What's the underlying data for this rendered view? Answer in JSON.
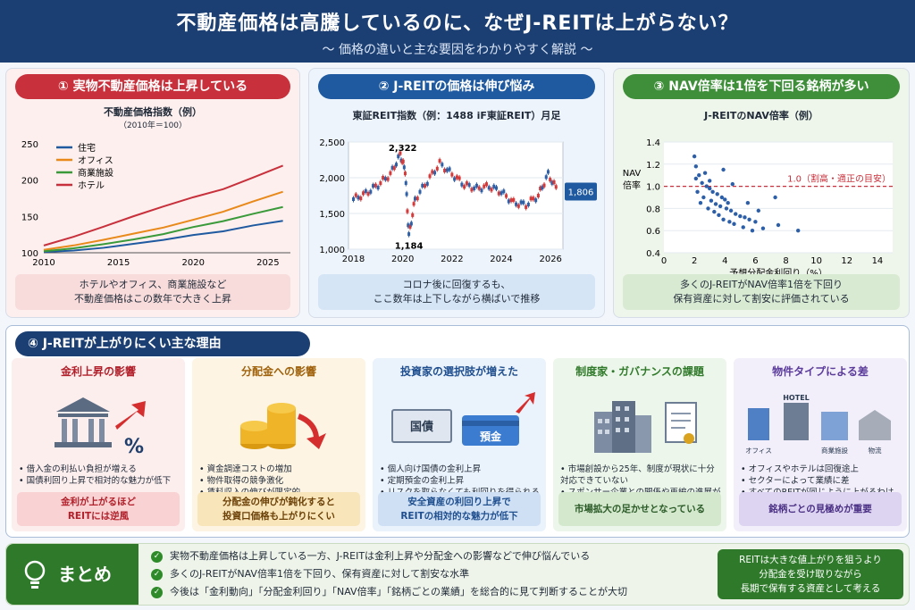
{
  "header": {
    "title": "不動産価格は高騰しているのに、なぜJ-REITは上がらない？",
    "subtitle": "〜 価格の違いと主な要因をわかりやすく解説 〜"
  },
  "panel1": {
    "heading": "① 実物不動産価格は上昇している",
    "chart_title": "不動産価格指数（例）",
    "chart_sub": "（2010年＝100）",
    "caption": [
      "ホテルやオフィス、商業施設など",
      "不動産価格はこの数年で大きく上昇"
    ]
  },
  "panel2": {
    "heading": "② J-REITの価格は伸び悩み",
    "chart_title": "東証REIT指数（例：1488 iF東証REIT）月足",
    "caption": [
      "コロナ後に回復するも、",
      "ここ数年は上下しながら横ばいで推移"
    ]
  },
  "panel3": {
    "heading": "③ NAV倍率は1倍を下回る銘柄が多い",
    "chart_title": "J-REITのNAV倍率（例）",
    "caption": [
      "多くのJ-REITがNAV倍率1倍を下回り",
      "保有資産に対して割安に評価されている"
    ]
  },
  "chart_data": [
    {
      "type": "line",
      "title": "不動産価格指数（例）",
      "subtitle": "（2010年＝100）",
      "xlim": [
        2010,
        2026.5
      ],
      "ylim": [
        100,
        250
      ],
      "x_ticks": [
        "2010",
        "2015",
        "2020",
        "2025"
      ],
      "y_ticks": [
        "100",
        "150",
        "200",
        "250"
      ],
      "legend_position": "top-left",
      "colors": {
        "住宅": "#1f5aa0",
        "オフィス": "#e8891a",
        "商業施設": "#3a9a3a",
        "ホテル": "#c8303b"
      },
      "x": [
        2010,
        2012,
        2014,
        2016,
        2018,
        2020,
        2022,
        2024,
        2026
      ],
      "series": [
        {
          "name": "住宅",
          "values": [
            101,
            103,
            107,
            112,
            118,
            124,
            130,
            137,
            144
          ]
        },
        {
          "name": "オフィス",
          "values": [
            104,
            110,
            118,
            126,
            135,
            145,
            157,
            170,
            184
          ]
        },
        {
          "name": "商業施設",
          "values": [
            102,
            106,
            112,
            118,
            126,
            135,
            144,
            153,
            163
          ]
        },
        {
          "name": "ホテル",
          "values": [
            110,
            122,
            136,
            150,
            164,
            176,
            188,
            203,
            220
          ]
        }
      ]
    },
    {
      "type": "line",
      "title": "東証REIT指数（例：1488 iF東証REIT）月足",
      "xlim": [
        2017.8,
        2026.5
      ],
      "ylim": [
        1000,
        2500
      ],
      "x_ticks": [
        "2018",
        "2020",
        "2022",
        "2024",
        "2026"
      ],
      "y_ticks": [
        "1,000",
        "1,500",
        "2,000",
        "2,500"
      ],
      "annotations": [
        "2,322",
        "1,184",
        "1,806"
      ],
      "x": [
        2018,
        2018.5,
        2019,
        2019.5,
        2019.9,
        2020.1,
        2020.25,
        2020.5,
        2021,
        2021.5,
        2022,
        2022.5,
        2023,
        2023.5,
        2024,
        2024.5,
        2025,
        2025.5,
        2025.9,
        2026.3
      ],
      "values": [
        1700,
        1780,
        1900,
        2050,
        2322,
        2100,
        1184,
        1700,
        1950,
        2200,
        2050,
        1900,
        1850,
        1880,
        1800,
        1650,
        1620,
        1750,
        2050,
        1806
      ]
    },
    {
      "type": "scatter",
      "title": "J-REITのNAV倍率（例）",
      "xlabel": "予想分配金利回り（%）",
      "ylabel": "NAV 倍率",
      "xlim": [
        0,
        15
      ],
      "ylim": [
        0.4,
        1.4
      ],
      "x_ticks": [
        "0",
        "2",
        "4",
        "6",
        "8",
        "10",
        "12",
        "14"
      ],
      "y_ticks": [
        "0.4",
        "0.6",
        "0.8",
        "1.0",
        "1.2",
        "1.4"
      ],
      "reference_line": {
        "y": 1.0,
        "label": "1.0（割高・適正の目安）"
      },
      "points": [
        [
          2,
          1.27
        ],
        [
          2.1,
          1.18
        ],
        [
          2.3,
          1.1
        ],
        [
          2.5,
          1.03
        ],
        [
          2.8,
          1.0
        ],
        [
          3,
          0.98
        ],
        [
          3.2,
          0.95
        ],
        [
          3.5,
          0.93
        ],
        [
          3.8,
          0.9
        ],
        [
          4,
          0.88
        ],
        [
          4.2,
          0.85
        ],
        [
          2.2,
          0.95
        ],
        [
          2.6,
          0.9
        ],
        [
          3.1,
          0.87
        ],
        [
          3.4,
          0.84
        ],
        [
          3.7,
          0.82
        ],
        [
          4.1,
          0.8
        ],
        [
          4.4,
          0.78
        ],
        [
          4.7,
          0.75
        ],
        [
          5,
          0.73
        ],
        [
          5.3,
          0.72
        ],
        [
          5.6,
          0.7
        ],
        [
          6,
          0.68
        ],
        [
          2.4,
          0.85
        ],
        [
          2.9,
          0.8
        ],
        [
          3.3,
          0.77
        ],
        [
          3.6,
          0.74
        ],
        [
          3.9,
          0.7
        ],
        [
          4.3,
          0.68
        ],
        [
          4.6,
          0.66
        ],
        [
          5.2,
          0.63
        ],
        [
          5.8,
          0.6
        ],
        [
          6.5,
          0.62
        ],
        [
          7.5,
          0.65
        ],
        [
          8.8,
          0.6
        ],
        [
          2.1,
          1.07
        ],
        [
          2.7,
          1.12
        ],
        [
          3.9,
          1.15
        ],
        [
          4.5,
          1.02
        ],
        [
          3,
          1.05
        ],
        [
          5.5,
          0.85
        ],
        [
          6.2,
          0.78
        ],
        [
          7.3,
          0.9
        ]
      ]
    }
  ],
  "section4": {
    "heading": "④ J-REITが上がりにくい主な理由",
    "cards": [
      {
        "title": "金利上昇の影響",
        "bullets": [
          "借入金の利払い負担が増える",
          "国債利回り上昇で相対的な魅力が低下"
        ],
        "box": [
          "金利が上がるほど",
          "REITには逆風"
        ],
        "icon_label": "%"
      },
      {
        "title": "分配金への影響",
        "bullets": [
          "資金調達コストの増加",
          "物件取得の競争激化",
          "賃料収入の伸びが限定的"
        ],
        "box": [
          "分配金の伸びが鈍化すると",
          "投資口価格も上がりにくい"
        ]
      },
      {
        "title": "投資家の選択肢が増えた",
        "bullets": [
          "個人向け国債の金利上昇",
          "定期預金の金利上昇",
          "リスクを取らなくても利回りを得られる環境に"
        ],
        "box": [
          "安全資産の利回り上昇で",
          "REITの相対的な魅力が低下"
        ],
        "icon_labels": [
          "国債",
          "預金"
        ]
      },
      {
        "title": "制度家・ガバナンスの課題",
        "bullets": [
          "市場創設から25年、制度が現状に十分対応できていない",
          "スポンサー企業との関係や再編の進展が限定的"
        ],
        "box": [
          "市場拡大の足かせとなっている"
        ]
      },
      {
        "title": "物件タイプによる差",
        "bullets": [
          "オフィスやホテルは回復途上",
          "セクターによって業績に差",
          "すべてのREITが同じように上がるわけではない"
        ],
        "box": [
          "銘柄ごとの見極めが重要"
        ],
        "icon_labels": [
          "オフィス",
          "HOTEL",
          "商業施設",
          "物流"
        ]
      }
    ]
  },
  "summary": {
    "label": "まとめ",
    "items": [
      "実物不動産価格は上昇している一方、J-REITは金利上昇や分配金への影響などで伸び悩んでいる",
      "多くのJ-REITがNAV倍率1倍を下回り、保有資産に対して割安な水準",
      "今後は「金利動向」「分配金利回り」「NAV倍率」「銘柄ごとの業績」を総合的に見て判断することが大切"
    ],
    "note": [
      "REITは大きな値上がりを狙うより",
      "分配金を受け取りながら",
      "長期で保有する資産として考える"
    ]
  }
}
